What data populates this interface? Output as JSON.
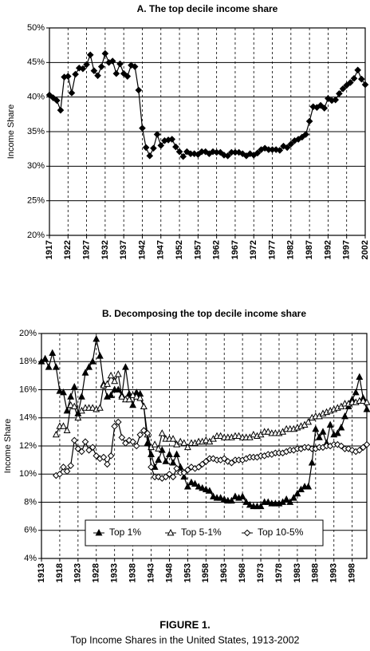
{
  "chart_data": [
    {
      "type": "line",
      "title": "A. The top decile income share",
      "ylabel": "Income Share",
      "color": "#000000",
      "marker": "diamond-filled",
      "grid": true,
      "xlim": [
        1917,
        2002
      ],
      "xticks": [
        1917,
        1922,
        1927,
        1932,
        1937,
        1942,
        1947,
        1952,
        1957,
        1962,
        1967,
        1972,
        1977,
        1982,
        1987,
        1992,
        1997,
        2002
      ],
      "ylim": [
        20,
        50
      ],
      "yticks": [
        {
          "value": 20,
          "label": "20%"
        },
        {
          "value": 25,
          "label": "25%"
        },
        {
          "value": 30,
          "label": "30%"
        },
        {
          "value": 35,
          "label": "35%"
        },
        {
          "value": 40,
          "label": "40%"
        },
        {
          "value": 45,
          "label": "45%"
        },
        {
          "value": 50,
          "label": "50%"
        }
      ],
      "x": [
        1917,
        1918,
        1919,
        1920,
        1921,
        1922,
        1923,
        1924,
        1925,
        1926,
        1927,
        1928,
        1929,
        1930,
        1931,
        1932,
        1933,
        1934,
        1935,
        1936,
        1937,
        1938,
        1939,
        1940,
        1941,
        1942,
        1943,
        1944,
        1945,
        1946,
        1947,
        1948,
        1949,
        1950,
        1951,
        1952,
        1953,
        1954,
        1955,
        1956,
        1957,
        1958,
        1959,
        1960,
        1961,
        1962,
        1963,
        1964,
        1965,
        1966,
        1967,
        1968,
        1969,
        1970,
        1971,
        1972,
        1973,
        1974,
        1975,
        1976,
        1977,
        1978,
        1979,
        1980,
        1981,
        1982,
        1983,
        1984,
        1985,
        1986,
        1987,
        1988,
        1989,
        1990,
        1991,
        1992,
        1993,
        1994,
        1995,
        1996,
        1997,
        1998,
        1999,
        2000,
        2001,
        2002
      ],
      "values": [
        40.3,
        39.9,
        39.5,
        38.1,
        42.9,
        43.0,
        40.6,
        43.3,
        44.2,
        44.1,
        44.7,
        46.1,
        43.8,
        43.1,
        44.4,
        46.3,
        45.0,
        45.2,
        43.4,
        44.8,
        43.4,
        43.0,
        44.6,
        44.4,
        41.0,
        35.5,
        32.7,
        31.5,
        32.6,
        34.6,
        33.0,
        33.7,
        33.8,
        33.9,
        32.8,
        32.1,
        31.4,
        32.1,
        31.8,
        31.8,
        31.7,
        32.1,
        32.1,
        31.8,
        32.1,
        32.0,
        32.0,
        31.6,
        31.5,
        32.0,
        32.0,
        32.0,
        31.8,
        31.5,
        31.8,
        31.6,
        31.9,
        32.4,
        32.6,
        32.4,
        32.4,
        32.4,
        32.3,
        32.9,
        32.7,
        33.2,
        33.7,
        33.9,
        34.2,
        34.6,
        36.5,
        38.6,
        38.5,
        38.8,
        38.4,
        39.8,
        39.5,
        39.6,
        40.5,
        41.2,
        41.7,
        42.1,
        42.7,
        43.9,
        42.6,
        41.8
      ]
    },
    {
      "type": "line",
      "title": "B. Decomposing the top decile income share",
      "ylabel": "Income Share",
      "grid": true,
      "legend": "lower center",
      "xlim": [
        1913,
        2002
      ],
      "xticks": [
        1913,
        1918,
        1923,
        1928,
        1933,
        1938,
        1943,
        1948,
        1953,
        1958,
        1963,
        1968,
        1973,
        1978,
        1983,
        1988,
        1993,
        1998
      ],
      "ylim": [
        4,
        20
      ],
      "yticks": [
        {
          "value": 4,
          "label": "4%"
        },
        {
          "value": 6,
          "label": "6%"
        },
        {
          "value": 8,
          "label": "8%"
        },
        {
          "value": 10,
          "label": "10%"
        },
        {
          "value": 12,
          "label": "12%"
        },
        {
          "value": 14,
          "label": "14%"
        },
        {
          "value": 16,
          "label": "16%"
        },
        {
          "value": 18,
          "label": "18%"
        },
        {
          "value": 20,
          "label": "20%"
        }
      ],
      "x": [
        1913,
        1914,
        1915,
        1916,
        1917,
        1918,
        1919,
        1920,
        1921,
        1922,
        1923,
        1924,
        1925,
        1926,
        1927,
        1928,
        1929,
        1930,
        1931,
        1932,
        1933,
        1934,
        1935,
        1936,
        1937,
        1938,
        1939,
        1940,
        1941,
        1942,
        1943,
        1944,
        1945,
        1946,
        1947,
        1948,
        1949,
        1950,
        1951,
        1952,
        1953,
        1954,
        1955,
        1956,
        1957,
        1958,
        1959,
        1960,
        1961,
        1962,
        1963,
        1964,
        1965,
        1966,
        1967,
        1968,
        1969,
        1970,
        1971,
        1972,
        1973,
        1974,
        1975,
        1976,
        1977,
        1978,
        1979,
        1980,
        1981,
        1982,
        1983,
        1984,
        1985,
        1986,
        1987,
        1988,
        1989,
        1990,
        1991,
        1992,
        1993,
        1994,
        1995,
        1996,
        1997,
        1998,
        1999,
        2000,
        2001,
        2002
      ],
      "series": [
        {
          "name": "Top 1%",
          "color": "#000000",
          "marker": "triangle-filled",
          "values": [
            18.0,
            18.2,
            17.6,
            18.6,
            17.6,
            15.9,
            15.8,
            14.5,
            15.5,
            16.2,
            14.3,
            15.5,
            17.2,
            17.6,
            18.0,
            19.6,
            18.4,
            16.4,
            15.5,
            15.6,
            16.0,
            16.0,
            15.6,
            17.6,
            15.7,
            14.9,
            15.8,
            15.7,
            14.8,
            12.2,
            11.4,
            10.5,
            11.0,
            11.7,
            10.9,
            11.4,
            10.8,
            11.4,
            10.5,
            9.8,
            9.1,
            9.4,
            9.3,
            9.1,
            9.0,
            8.9,
            8.8,
            8.4,
            8.3,
            8.3,
            8.2,
            8.1,
            8.1,
            8.4,
            8.3,
            8.4,
            8.0,
            7.8,
            7.7,
            7.7,
            7.7,
            8.0,
            8.0,
            7.9,
            7.9,
            7.9,
            8.0,
            8.2,
            8.0,
            8.3,
            8.6,
            8.9,
            9.1,
            9.1,
            10.8,
            13.2,
            12.6,
            13.0,
            12.2,
            13.5,
            12.8,
            12.9,
            13.3,
            14.1,
            14.8,
            15.3,
            15.8,
            16.9,
            15.4,
            14.6
          ]
        },
        {
          "name": "Top 5-1%",
          "color": "#000000",
          "marker": "triangle-open",
          "values": [
            null,
            null,
            null,
            null,
            12.8,
            13.4,
            13.4,
            13.1,
            14.9,
            14.8,
            14.0,
            14.5,
            14.7,
            14.7,
            14.7,
            14.6,
            14.7,
            16.3,
            16.4,
            17.0,
            16.6,
            17.1,
            15.5,
            15.3,
            15.3,
            15.6,
            15.5,
            15.4,
            14.8,
            12.8,
            11.9,
            12.1,
            11.8,
            12.9,
            12.5,
            12.5,
            12.5,
            12.1,
            12.3,
            12.2,
            11.9,
            12.2,
            12.2,
            12.3,
            12.3,
            12.4,
            12.3,
            12.5,
            12.7,
            12.7,
            12.6,
            12.6,
            12.6,
            12.7,
            12.7,
            12.6,
            12.6,
            12.6,
            12.8,
            12.7,
            12.8,
            13.0,
            13.0,
            12.9,
            12.9,
            12.9,
            13.0,
            13.2,
            13.2,
            13.2,
            13.3,
            13.4,
            13.5,
            13.7,
            14.0,
            14.1,
            14.1,
            14.3,
            14.4,
            14.5,
            14.6,
            14.7,
            14.8,
            15.0,
            15.0,
            15.1,
            15.1,
            15.2,
            15.2,
            15.1
          ]
        },
        {
          "name": "Top 10-5%",
          "color": "#000000",
          "marker": "diamond-open",
          "values": [
            null,
            null,
            null,
            null,
            9.9,
            10.0,
            10.5,
            10.2,
            10.6,
            12.4,
            11.8,
            11.6,
            12.3,
            11.7,
            11.9,
            11.3,
            11.1,
            11.2,
            10.7,
            11.3,
            13.4,
            13.7,
            12.6,
            12.2,
            12.4,
            12.3,
            12.0,
            12.8,
            13.1,
            12.9,
            10.5,
            9.8,
            9.8,
            9.7,
            9.8,
            10.0,
            9.8,
            10.4,
            10.1,
            10.1,
            10.3,
            10.5,
            10.4,
            10.5,
            10.7,
            10.9,
            11.1,
            11.1,
            11.0,
            11.0,
            11.1,
            10.9,
            10.8,
            11.0,
            11.0,
            11.0,
            11.1,
            11.2,
            11.2,
            11.2,
            11.3,
            11.3,
            11.4,
            11.4,
            11.5,
            11.5,
            11.5,
            11.6,
            11.7,
            11.7,
            11.8,
            11.8,
            11.9,
            11.9,
            11.8,
            11.8,
            11.9,
            11.9,
            12.0,
            12.0,
            12.1,
            12.1,
            12.0,
            11.8,
            11.8,
            11.7,
            11.6,
            11.7,
            11.9,
            12.1
          ]
        }
      ]
    }
  ],
  "figure": {
    "label": "FIGURE 1.",
    "caption": "Top Income Shares in the United States, 1913-2002"
  }
}
